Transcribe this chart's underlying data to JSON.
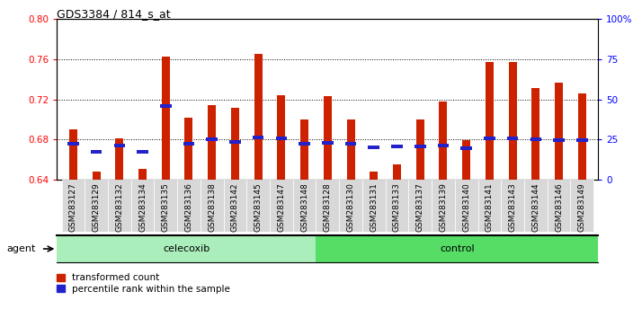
{
  "title": "GDS3384 / 814_s_at",
  "samples": [
    "GSM283127",
    "GSM283129",
    "GSM283132",
    "GSM283134",
    "GSM283135",
    "GSM283136",
    "GSM283138",
    "GSM283142",
    "GSM283145",
    "GSM283147",
    "GSM283148",
    "GSM283128",
    "GSM283130",
    "GSM283131",
    "GSM283133",
    "GSM283137",
    "GSM283139",
    "GSM283140",
    "GSM283141",
    "GSM283143",
    "GSM283144",
    "GSM283146",
    "GSM283149"
  ],
  "red_values": [
    0.69,
    0.648,
    0.681,
    0.651,
    0.763,
    0.702,
    0.714,
    0.712,
    0.765,
    0.724,
    0.7,
    0.723,
    0.7,
    0.648,
    0.655,
    0.7,
    0.718,
    0.679,
    0.757,
    0.757,
    0.731,
    0.737,
    0.726
  ],
  "blue_values": [
    0.676,
    0.668,
    0.674,
    0.668,
    0.713,
    0.676,
    0.68,
    0.678,
    0.682,
    0.681,
    0.676,
    0.677,
    0.676,
    0.672,
    0.673,
    0.673,
    0.674,
    0.671,
    0.681,
    0.681,
    0.68,
    0.679,
    0.679
  ],
  "ymin": 0.64,
  "ymax": 0.8,
  "celecoxib_count": 11,
  "control_count": 12,
  "bar_color": "#cc2200",
  "blue_color": "#2222cc",
  "celecoxib_color": "#aaeebb",
  "control_color": "#55dd66",
  "xticklabel_bg": "#d8d8d8",
  "agent_label": "agent",
  "celecoxib_label": "celecoxib",
  "control_label": "control",
  "legend_red": "transformed count",
  "legend_blue": "percentile rank within the sample"
}
